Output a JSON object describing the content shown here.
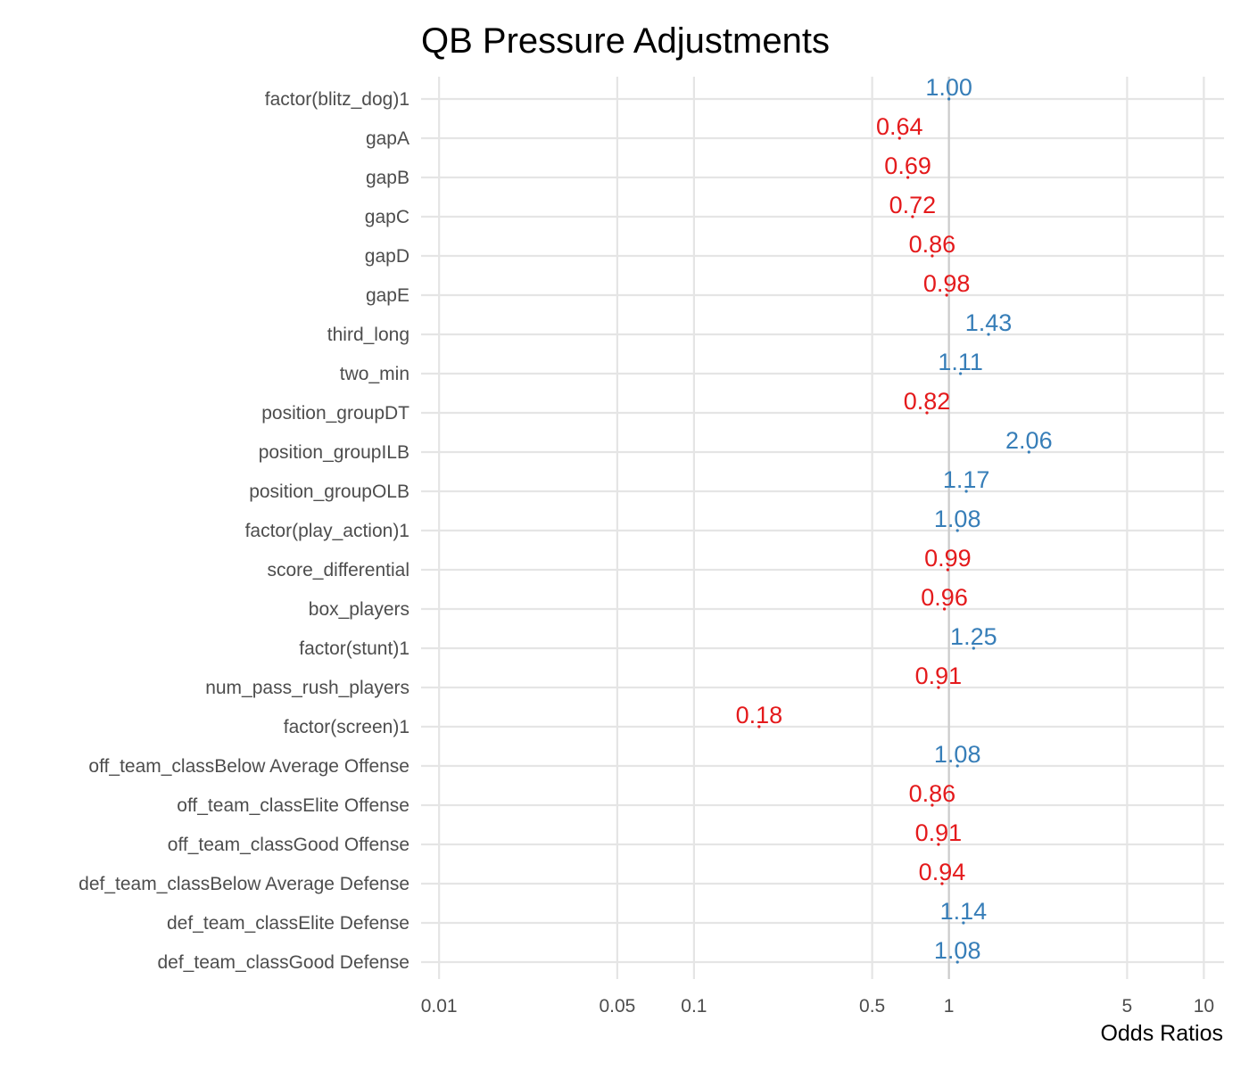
{
  "chart_data": {
    "type": "scatter",
    "title": "QB Pressure Adjustments",
    "xlabel": "Odds Ratios",
    "ylabel": "",
    "x_scale": "log10",
    "xlim": [
      0.0085,
      12
    ],
    "x_ticks": [
      0.01,
      0.05,
      0.1,
      0.5,
      1,
      5,
      10
    ],
    "x_tick_labels": [
      "0.01",
      "0.05",
      "0.1",
      "0.5",
      "1",
      "5",
      "10"
    ],
    "reference_line": 1,
    "colors": {
      "positive": "#377eb8",
      "negative": "#e41a1c"
    },
    "terms": [
      "factor(blitz_dog)1",
      "gapA",
      "gapB",
      "gapC",
      "gapD",
      "gapE",
      "third_long",
      "two_min",
      "position_groupDT",
      "position_groupILB",
      "position_groupOLB",
      "factor(play_action)1",
      "score_differential",
      "box_players",
      "factor(stunt)1",
      "num_pass_rush_players",
      "factor(screen)1",
      "off_team_classBelow Average Offense",
      "off_team_classElite Offense",
      "off_team_classGood Offense",
      "def_team_classBelow Average Defense",
      "def_team_classElite Defense",
      "def_team_classGood Defense"
    ],
    "values": [
      1.0,
      0.64,
      0.69,
      0.72,
      0.86,
      0.98,
      1.43,
      1.11,
      0.82,
      2.06,
      1.17,
      1.08,
      0.99,
      0.96,
      1.25,
      0.91,
      0.18,
      1.08,
      0.86,
      0.91,
      0.94,
      1.14,
      1.08
    ],
    "value_labels": [
      "1.00",
      "0.64",
      "0.69",
      "0.72",
      "0.86",
      "0.98",
      "1.43",
      "1.11",
      "0.82",
      "2.06",
      "1.17",
      "1.08",
      "0.99",
      "0.96",
      "1.25",
      "0.91",
      "0.18",
      "1.08",
      "0.86",
      "0.91",
      "0.94",
      "1.14",
      "1.08"
    ]
  }
}
